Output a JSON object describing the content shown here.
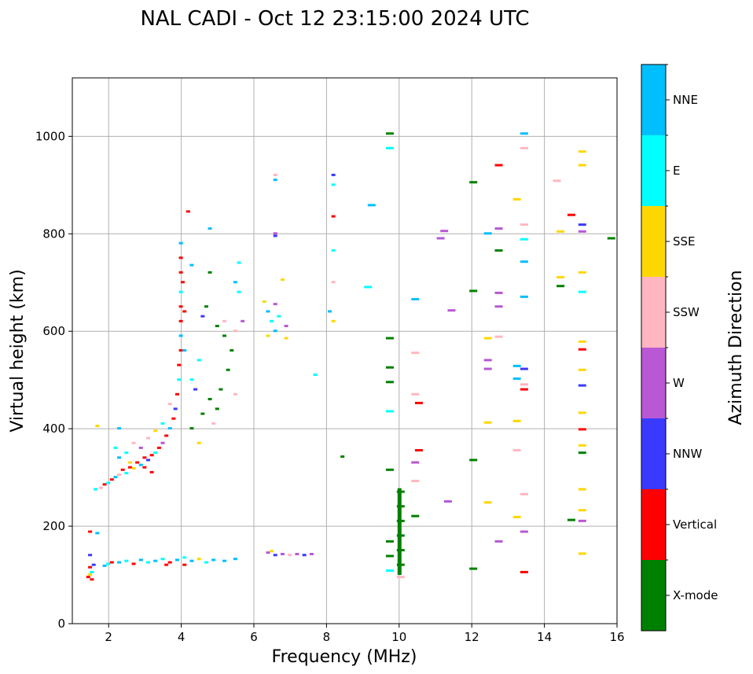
{
  "chart_data": {
    "type": "scatter",
    "title": "NAL CADI - Oct 12 23:15:00 2024 UTC",
    "xlabel": "Frequency (MHz)",
    "ylabel": "Virtual height (km)",
    "xlim": [
      1,
      16
    ],
    "ylim": [
      0,
      1120
    ],
    "xticks": [
      2,
      4,
      6,
      8,
      10,
      12,
      14,
      16
    ],
    "yticks": [
      0,
      200,
      400,
      600,
      800,
      1000
    ],
    "grid": true,
    "colorbar": {
      "label": "Azimuth Direction",
      "categories": [
        "X-mode",
        "Vertical",
        "NNW",
        "W",
        "SSW",
        "SSE",
        "E",
        "NNE"
      ],
      "colors": [
        "#008000",
        "#ff0000",
        "#3a3aff",
        "#b957d4",
        "#ffb6c1",
        "#ffd700",
        "#00ffff",
        "#00bfff"
      ]
    },
    "points": [
      [
        1.45,
        95,
        1
      ],
      [
        1.5,
        100,
        5
      ],
      [
        1.55,
        105,
        6
      ],
      [
        1.5,
        115,
        1
      ],
      [
        1.6,
        120,
        2
      ],
      [
        1.55,
        90,
        1
      ],
      [
        1.7,
        185,
        7
      ],
      [
        1.5,
        188,
        1
      ],
      [
        1.5,
        140,
        2
      ],
      [
        1.9,
        118,
        7
      ],
      [
        2.0,
        122,
        6
      ],
      [
        2.1,
        125,
        1
      ],
      [
        2.3,
        125,
        7
      ],
      [
        2.5,
        128,
        6
      ],
      [
        2.7,
        122,
        1
      ],
      [
        2.9,
        130,
        7
      ],
      [
        3.1,
        125,
        6
      ],
      [
        3.3,
        128,
        7
      ],
      [
        3.5,
        132,
        6
      ],
      [
        3.7,
        125,
        1
      ],
      [
        3.9,
        130,
        7
      ],
      [
        4.1,
        135,
        6
      ],
      [
        4.3,
        128,
        7
      ],
      [
        4.5,
        132,
        5
      ],
      [
        4.7,
        125,
        6
      ],
      [
        4.9,
        130,
        7
      ],
      [
        5.2,
        128,
        7
      ],
      [
        5.5,
        132,
        7
      ],
      [
        4.1,
        120,
        1
      ],
      [
        3.6,
        120,
        1
      ],
      [
        6.4,
        145,
        3
      ],
      [
        6.6,
        140,
        2
      ],
      [
        6.8,
        142,
        3
      ],
      [
        7.0,
        140,
        4
      ],
      [
        7.2,
        142,
        3
      ],
      [
        7.4,
        140,
        2
      ],
      [
        7.6,
        142,
        3
      ],
      [
        6.5,
        148,
        5
      ],
      [
        1.65,
        275,
        6
      ],
      [
        1.8,
        278,
        4
      ],
      [
        1.9,
        285,
        1
      ],
      [
        2.0,
        288,
        6
      ],
      [
        2.1,
        295,
        1
      ],
      [
        2.2,
        300,
        7
      ],
      [
        2.3,
        305,
        4
      ],
      [
        2.4,
        315,
        1
      ],
      [
        2.5,
        308,
        6
      ],
      [
        2.6,
        320,
        1
      ],
      [
        2.7,
        318,
        5
      ],
      [
        2.8,
        330,
        1
      ],
      [
        2.9,
        325,
        7
      ],
      [
        3.0,
        340,
        1
      ],
      [
        3.1,
        335,
        2
      ],
      [
        3.2,
        345,
        1
      ],
      [
        3.3,
        350,
        6
      ],
      [
        3.4,
        360,
        1
      ],
      [
        3.5,
        370,
        3
      ],
      [
        3.6,
        385,
        1
      ],
      [
        3.7,
        400,
        7
      ],
      [
        3.8,
        420,
        1
      ],
      [
        3.85,
        440,
        2
      ],
      [
        3.9,
        470,
        1
      ],
      [
        3.95,
        500,
        6
      ],
      [
        3.95,
        530,
        1
      ],
      [
        4.0,
        560,
        1
      ],
      [
        4.0,
        590,
        7
      ],
      [
        4.0,
        620,
        1
      ],
      [
        4.0,
        650,
        1
      ],
      [
        4.0,
        680,
        6
      ],
      [
        4.0,
        720,
        1
      ],
      [
        4.0,
        750,
        1
      ],
      [
        4.0,
        780,
        7
      ],
      [
        4.05,
        700,
        1
      ],
      [
        4.1,
        640,
        1
      ],
      [
        4.1,
        560,
        7
      ],
      [
        2.3,
        340,
        7
      ],
      [
        2.5,
        350,
        6
      ],
      [
        2.7,
        370,
        4
      ],
      [
        2.9,
        360,
        3
      ],
      [
        3.1,
        380,
        4
      ],
      [
        3.3,
        395,
        5
      ],
      [
        3.5,
        410,
        6
      ],
      [
        3.7,
        450,
        4
      ],
      [
        2.2,
        360,
        6
      ],
      [
        2.6,
        330,
        5
      ],
      [
        3.0,
        320,
        1
      ],
      [
        3.2,
        310,
        1
      ],
      [
        1.7,
        405,
        5
      ],
      [
        2.3,
        400,
        7
      ],
      [
        4.3,
        400,
        0
      ],
      [
        4.5,
        370,
        5
      ],
      [
        4.6,
        430,
        0
      ],
      [
        4.8,
        460,
        0
      ],
      [
        5.0,
        440,
        0
      ],
      [
        5.1,
        480,
        0
      ],
      [
        5.3,
        520,
        0
      ],
      [
        5.4,
        560,
        0
      ],
      [
        5.2,
        590,
        0
      ],
      [
        5.0,
        610,
        0
      ],
      [
        4.7,
        650,
        0
      ],
      [
        4.8,
        720,
        0
      ],
      [
        4.5,
        540,
        6
      ],
      [
        4.4,
        480,
        2
      ],
      [
        4.3,
        500,
        6
      ],
      [
        4.9,
        410,
        4
      ],
      [
        5.5,
        470,
        4
      ],
      [
        5.5,
        600,
        4
      ],
      [
        5.6,
        680,
        6
      ],
      [
        5.6,
        740,
        6
      ],
      [
        5.5,
        700,
        7
      ],
      [
        4.8,
        810,
        7
      ],
      [
        4.3,
        735,
        7
      ],
      [
        4.2,
        845,
        1
      ],
      [
        4.6,
        630,
        2
      ],
      [
        5.2,
        620,
        4
      ],
      [
        5.7,
        620,
        3
      ],
      [
        6.3,
        660,
        5
      ],
      [
        6.4,
        640,
        7
      ],
      [
        6.5,
        620,
        6
      ],
      [
        6.6,
        600,
        7
      ],
      [
        6.4,
        590,
        5
      ],
      [
        6.7,
        630,
        6
      ],
      [
        6.6,
        655,
        3
      ],
      [
        6.9,
        610,
        3
      ],
      [
        6.9,
        585,
        5
      ],
      [
        6.8,
        705,
        5
      ],
      [
        6.6,
        920,
        4
      ],
      [
        6.6,
        910,
        7
      ],
      [
        6.6,
        800,
        3
      ],
      [
        6.6,
        795,
        2
      ],
      [
        7.7,
        510,
        6
      ],
      [
        8.2,
        920,
        2
      ],
      [
        8.2,
        900,
        6
      ],
      [
        8.2,
        835,
        1
      ],
      [
        8.2,
        765,
        6
      ],
      [
        8.2,
        700,
        4
      ],
      [
        8.2,
        620,
        5
      ],
      [
        8.1,
        640,
        7
      ],
      [
        8.45,
        342,
        0
      ],
      [
        9.2,
        858,
        7
      ],
      [
        9.1,
        690,
        6
      ],
      [
        9.7,
        1005,
        0
      ],
      [
        9.7,
        975,
        6
      ],
      [
        9.7,
        585,
        0
      ],
      [
        9.7,
        525,
        0
      ],
      [
        9.7,
        495,
        0
      ],
      [
        9.7,
        435,
        6
      ],
      [
        9.7,
        315,
        0
      ],
      [
        9.7,
        168,
        0
      ],
      [
        9.7,
        138,
        0
      ],
      [
        9.7,
        108,
        6
      ],
      [
        10.0,
        270,
        0
      ],
      [
        10.0,
        240,
        0
      ],
      [
        10.0,
        210,
        0
      ],
      [
        10.0,
        180,
        0
      ],
      [
        10.0,
        150,
        0
      ],
      [
        10.0,
        120,
        0
      ],
      [
        10.0,
        95,
        4
      ],
      [
        10.4,
        665,
        7
      ],
      [
        10.4,
        555,
        4
      ],
      [
        10.4,
        470,
        4
      ],
      [
        10.5,
        452,
        1
      ],
      [
        10.5,
        355,
        1
      ],
      [
        10.4,
        330,
        3
      ],
      [
        10.4,
        292,
        4
      ],
      [
        10.4,
        220,
        0
      ],
      [
        11.1,
        790,
        3
      ],
      [
        11.2,
        805,
        3
      ],
      [
        11.4,
        642,
        3
      ],
      [
        11.3,
        250,
        3
      ],
      [
        12.0,
        905,
        0
      ],
      [
        12.0,
        682,
        0
      ],
      [
        12.0,
        335,
        0
      ],
      [
        12.0,
        112,
        0
      ],
      [
        12.4,
        800,
        7
      ],
      [
        12.7,
        940,
        1
      ],
      [
        12.7,
        810,
        3
      ],
      [
        12.7,
        765,
        0
      ],
      [
        12.7,
        678,
        3
      ],
      [
        12.7,
        650,
        3
      ],
      [
        12.4,
        585,
        5
      ],
      [
        12.7,
        588,
        4
      ],
      [
        12.4,
        540,
        3
      ],
      [
        12.4,
        522,
        3
      ],
      [
        12.4,
        412,
        5
      ],
      [
        12.4,
        248,
        5
      ],
      [
        12.7,
        168,
        3
      ],
      [
        13.4,
        1005,
        7
      ],
      [
        13.4,
        975,
        4
      ],
      [
        13.2,
        870,
        5
      ],
      [
        13.4,
        818,
        4
      ],
      [
        13.4,
        788,
        6
      ],
      [
        13.4,
        742,
        7
      ],
      [
        13.4,
        670,
        7
      ],
      [
        13.2,
        528,
        7
      ],
      [
        13.4,
        522,
        2
      ],
      [
        13.2,
        502,
        7
      ],
      [
        13.4,
        490,
        4
      ],
      [
        13.4,
        480,
        1
      ],
      [
        13.2,
        415,
        5
      ],
      [
        13.2,
        355,
        4
      ],
      [
        13.4,
        265,
        4
      ],
      [
        13.2,
        218,
        5
      ],
      [
        13.4,
        188,
        3
      ],
      [
        13.4,
        105,
        1
      ],
      [
        14.3,
        908,
        4
      ],
      [
        14.7,
        838,
        1
      ],
      [
        14.4,
        804,
        5
      ],
      [
        14.4,
        710,
        5
      ],
      [
        14.4,
        692,
        0
      ],
      [
        14.7,
        212,
        0
      ],
      [
        15.0,
        968,
        5
      ],
      [
        15.0,
        940,
        5
      ],
      [
        15.0,
        818,
        2
      ],
      [
        15.0,
        804,
        3
      ],
      [
        15.0,
        720,
        5
      ],
      [
        15.0,
        680,
        6
      ],
      [
        15.0,
        578,
        5
      ],
      [
        15.0,
        562,
        1
      ],
      [
        15.0,
        520,
        5
      ],
      [
        15.0,
        488,
        2
      ],
      [
        15.0,
        432,
        5
      ],
      [
        15.0,
        398,
        1
      ],
      [
        15.0,
        365,
        5
      ],
      [
        15.0,
        350,
        0
      ],
      [
        15.0,
        275,
        5
      ],
      [
        15.0,
        232,
        5
      ],
      [
        15.0,
        210,
        3
      ],
      [
        15.0,
        143,
        5
      ],
      [
        15.8,
        790,
        0
      ]
    ]
  }
}
